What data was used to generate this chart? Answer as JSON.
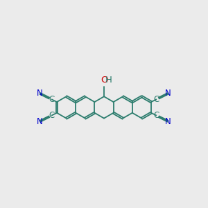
{
  "bg_color": "#ebebeb",
  "bond_color": "#2d7d6e",
  "cn_color": "#0000cc",
  "oh_color": "#cc0000",
  "bond_width": 1.3,
  "font_size": 8.5,
  "figsize": [
    3.0,
    3.0
  ],
  "dpi": 100,
  "s": 0.32,
  "xlim": [
    -3.0,
    3.0
  ],
  "ylim": [
    -1.6,
    1.8
  ]
}
